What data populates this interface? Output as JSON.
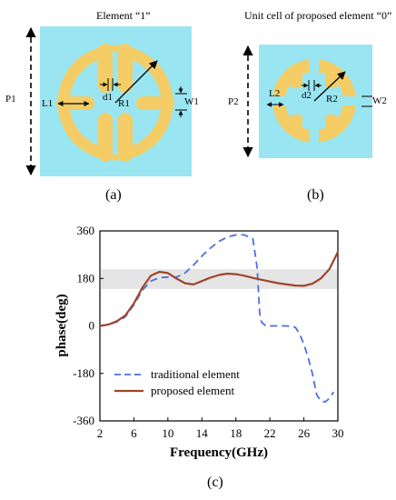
{
  "panel_a": {
    "title": "Element “1”",
    "labels": {
      "p": "P1",
      "l": "L1",
      "d": "d1",
      "r": "R1",
      "w": "W1"
    },
    "caption": "(a)"
  },
  "panel_b": {
    "title": "Unit cell of proposed element “0”",
    "labels": {
      "p": "P2",
      "l": "L2",
      "d": "d2",
      "r": "R2",
      "w": "W2"
    },
    "caption": "(b)"
  },
  "panel_c": {
    "caption": "(c)"
  },
  "colors": {
    "substrate": "#99e6f2",
    "ring": "#f4cd66",
    "band": "#dcdcdc",
    "traditional": "#4d6fe0",
    "proposed": "#a0442a"
  },
  "chart_data": {
    "type": "line",
    "xlabel": "Frequency(GHz)",
    "ylabel": "phase(deg)",
    "xlim": [
      2,
      30
    ],
    "ylim": [
      -360,
      360
    ],
    "xticks": [
      "2",
      "6",
      "10",
      "14",
      "18",
      "22",
      "26",
      "30"
    ],
    "yticks": [
      "360",
      "180",
      "0",
      "-180",
      "-360"
    ],
    "band": [
      140,
      215
    ],
    "legend_position": "bottom-left",
    "series": [
      {
        "name": "traditional element",
        "style": "dashed",
        "x": [
          2,
          3,
          4,
          5,
          6,
          7,
          8,
          9,
          10,
          11,
          12,
          13,
          14,
          15,
          16,
          17,
          18,
          19,
          20,
          20.5,
          20.8,
          21,
          21.5,
          22,
          24,
          25,
          25.5,
          26,
          26.5,
          27,
          27.5,
          28,
          28.5,
          29,
          29.5
        ],
        "y": [
          0,
          5,
          15,
          35,
          80,
          135,
          170,
          183,
          185,
          185,
          200,
          230,
          265,
          295,
          320,
          337,
          345,
          345,
          330,
          220,
          50,
          15,
          0,
          0,
          0,
          -5,
          -30,
          -70,
          -120,
          -180,
          -260,
          -285,
          -288,
          -275,
          -250
        ]
      },
      {
        "name": "proposed element",
        "style": "solid",
        "x": [
          2,
          3,
          4,
          5,
          6,
          7,
          8,
          9,
          10,
          11,
          12,
          13,
          14,
          15,
          16,
          17,
          18,
          19,
          20,
          21,
          22,
          23,
          24,
          25,
          26,
          27,
          28,
          29,
          30
        ],
        "y": [
          0,
          5,
          18,
          40,
          85,
          145,
          190,
          205,
          200,
          180,
          162,
          157,
          170,
          183,
          193,
          198,
          196,
          190,
          182,
          175,
          168,
          162,
          157,
          153,
          152,
          160,
          180,
          215,
          280
        ]
      }
    ]
  }
}
